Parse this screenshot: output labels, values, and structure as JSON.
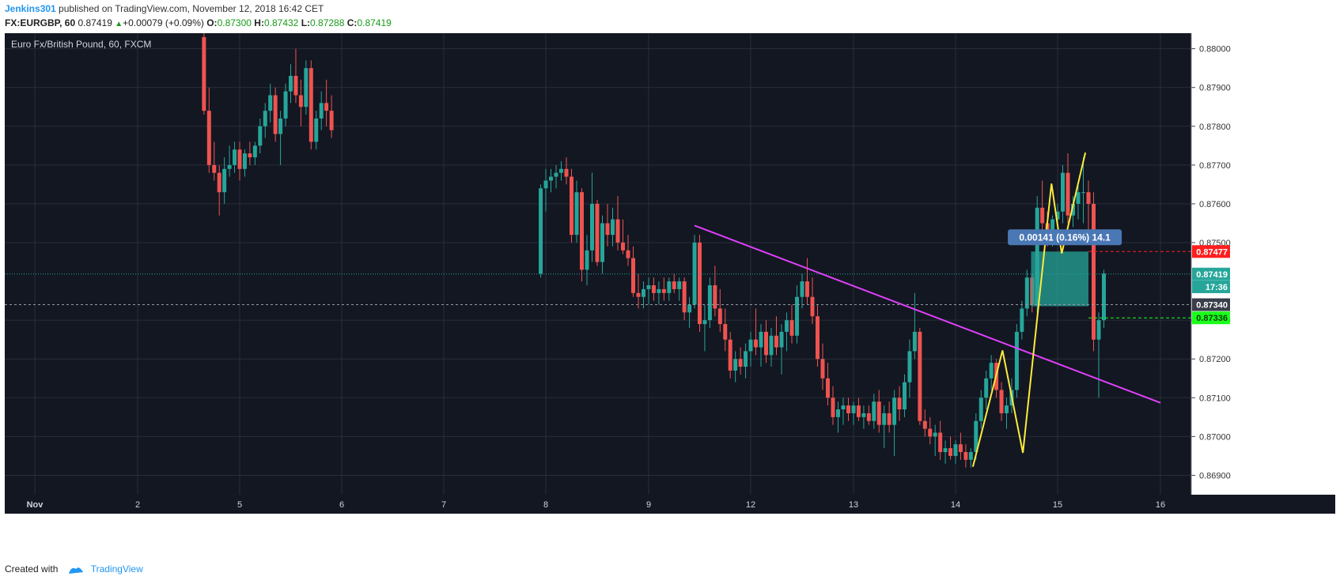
{
  "header": {
    "author": "Jenkins301",
    "published_text": " published on TradingView.com, November 12, 2018 16:42 CET",
    "symbol_tf": "FX:EURGBP, 60",
    "last": "0.87419",
    "change_arrow": "▲",
    "change": "+0.00079 (+0.09%)",
    "o_label": "O:",
    "o": "0.87300",
    "h_label": "H:",
    "h": "0.87432",
    "l_label": "L:",
    "l": "0.87288",
    "c_label": "C:",
    "c": "0.87419"
  },
  "footer": {
    "created_with": "Created with",
    "brand": "TradingView"
  },
  "chart_data": {
    "type": "candlestick",
    "title": "Euro Fx/British Pound, 60, FXCM",
    "xlabel": "",
    "ylabel": "",
    "x_ticks": [
      "Nov",
      "2",
      "5",
      "6",
      "7",
      "8",
      "9",
      "12",
      "13",
      "14",
      "15",
      "16"
    ],
    "y_ticks": [
      "0.88000",
      "0.87900",
      "0.87800",
      "0.87700",
      "0.87600",
      "0.87500",
      "0.87300",
      "0.87200",
      "0.87100",
      "0.87000",
      "0.86900"
    ],
    "ylim": [
      0.8685,
      0.8804
    ],
    "grid": true,
    "colors": {
      "background": "#131722",
      "grid": "#2a2e39",
      "up": "#26a69a",
      "down": "#ef5350",
      "trendline": "#e040fb",
      "pattern": "#ffeb3b",
      "box": "#26a69a"
    },
    "candles": [
      {
        "t": 1.65,
        "o": 0.8803,
        "h": 0.8806,
        "l": 0.8783,
        "c": 0.8784
      },
      {
        "t": 1.7,
        "o": 0.8784,
        "h": 0.879,
        "l": 0.8768,
        "c": 0.877
      },
      {
        "t": 1.75,
        "o": 0.877,
        "h": 0.8776,
        "l": 0.8766,
        "c": 0.8768
      },
      {
        "t": 1.8,
        "o": 0.8768,
        "h": 0.877,
        "l": 0.8757,
        "c": 0.8763
      },
      {
        "t": 1.85,
        "o": 0.8763,
        "h": 0.8772,
        "l": 0.876,
        "c": 0.8769
      },
      {
        "t": 1.9,
        "o": 0.8769,
        "h": 0.8775,
        "l": 0.8767,
        "c": 0.877
      },
      {
        "t": 1.95,
        "o": 0.877,
        "h": 0.8776,
        "l": 0.8768,
        "c": 0.8774
      },
      {
        "t": 2.0,
        "o": 0.8774,
        "h": 0.8776,
        "l": 0.8766,
        "c": 0.8769
      },
      {
        "t": 2.05,
        "o": 0.8769,
        "h": 0.8774,
        "l": 0.8767,
        "c": 0.8773
      },
      {
        "t": 2.1,
        "o": 0.8773,
        "h": 0.8776,
        "l": 0.877,
        "c": 0.8772
      },
      {
        "t": 2.15,
        "o": 0.8772,
        "h": 0.8776,
        "l": 0.877,
        "c": 0.8775
      },
      {
        "t": 2.2,
        "o": 0.8775,
        "h": 0.8782,
        "l": 0.8773,
        "c": 0.878
      },
      {
        "t": 2.25,
        "o": 0.878,
        "h": 0.8786,
        "l": 0.8777,
        "c": 0.8784
      },
      {
        "t": 2.3,
        "o": 0.8784,
        "h": 0.8791,
        "l": 0.8781,
        "c": 0.8788
      },
      {
        "t": 2.35,
        "o": 0.8788,
        "h": 0.879,
        "l": 0.8776,
        "c": 0.8778
      },
      {
        "t": 2.4,
        "o": 0.8778,
        "h": 0.8784,
        "l": 0.877,
        "c": 0.8782
      },
      {
        "t": 2.45,
        "o": 0.8782,
        "h": 0.8791,
        "l": 0.878,
        "c": 0.8789
      },
      {
        "t": 2.5,
        "o": 0.8789,
        "h": 0.8796,
        "l": 0.8786,
        "c": 0.8793
      },
      {
        "t": 2.55,
        "o": 0.8793,
        "h": 0.88,
        "l": 0.8786,
        "c": 0.8788
      },
      {
        "t": 2.6,
        "o": 0.8788,
        "h": 0.8792,
        "l": 0.878,
        "c": 0.8785
      },
      {
        "t": 2.65,
        "o": 0.8785,
        "h": 0.8797,
        "l": 0.8783,
        "c": 0.8795
      },
      {
        "t": 2.7,
        "o": 0.8795,
        "h": 0.8797,
        "l": 0.8774,
        "c": 0.8776
      },
      {
        "t": 2.75,
        "o": 0.8776,
        "h": 0.8784,
        "l": 0.8774,
        "c": 0.8782
      },
      {
        "t": 2.8,
        "o": 0.8782,
        "h": 0.8789,
        "l": 0.8779,
        "c": 0.8786
      },
      {
        "t": 2.85,
        "o": 0.8786,
        "h": 0.8792,
        "l": 0.878,
        "c": 0.8784
      },
      {
        "t": 2.9,
        "o": 0.8784,
        "h": 0.8788,
        "l": 0.8777,
        "c": 0.8779
      },
      {
        "t": 4.95,
        "o": 0.8742,
        "h": 0.8765,
        "l": 0.8741,
        "c": 0.8764
      },
      {
        "t": 5.0,
        "o": 0.8764,
        "h": 0.8769,
        "l": 0.8758,
        "c": 0.8766
      },
      {
        "t": 5.05,
        "o": 0.8766,
        "h": 0.8769,
        "l": 0.8763,
        "c": 0.8767
      },
      {
        "t": 5.1,
        "o": 0.8767,
        "h": 0.877,
        "l": 0.8764,
        "c": 0.8768
      },
      {
        "t": 5.15,
        "o": 0.8768,
        "h": 0.8771,
        "l": 0.8766,
        "c": 0.8769
      },
      {
        "t": 5.2,
        "o": 0.8769,
        "h": 0.8772,
        "l": 0.8765,
        "c": 0.8767
      },
      {
        "t": 5.25,
        "o": 0.8767,
        "h": 0.8769,
        "l": 0.875,
        "c": 0.8752
      },
      {
        "t": 5.3,
        "o": 0.8752,
        "h": 0.8766,
        "l": 0.875,
        "c": 0.8763
      },
      {
        "t": 5.35,
        "o": 0.8763,
        "h": 0.8764,
        "l": 0.874,
        "c": 0.8743
      },
      {
        "t": 5.4,
        "o": 0.8743,
        "h": 0.8752,
        "l": 0.8739,
        "c": 0.8748
      },
      {
        "t": 5.45,
        "o": 0.8748,
        "h": 0.8768,
        "l": 0.8745,
        "c": 0.876
      },
      {
        "t": 5.5,
        "o": 0.876,
        "h": 0.8761,
        "l": 0.8744,
        "c": 0.8745
      },
      {
        "t": 5.55,
        "o": 0.8745,
        "h": 0.8757,
        "l": 0.8742,
        "c": 0.8755
      },
      {
        "t": 5.6,
        "o": 0.8755,
        "h": 0.876,
        "l": 0.8749,
        "c": 0.8752
      },
      {
        "t": 5.65,
        "o": 0.8752,
        "h": 0.8759,
        "l": 0.8749,
        "c": 0.8756
      },
      {
        "t": 5.7,
        "o": 0.8756,
        "h": 0.8762,
        "l": 0.8748,
        "c": 0.875
      },
      {
        "t": 5.75,
        "o": 0.875,
        "h": 0.8756,
        "l": 0.8747,
        "c": 0.8748
      },
      {
        "t": 5.8,
        "o": 0.8748,
        "h": 0.8752,
        "l": 0.8744,
        "c": 0.8746
      },
      {
        "t": 5.85,
        "o": 0.8746,
        "h": 0.8749,
        "l": 0.8736,
        "c": 0.8737
      },
      {
        "t": 5.9,
        "o": 0.8737,
        "h": 0.8742,
        "l": 0.8733,
        "c": 0.8736
      },
      {
        "t": 5.95,
        "o": 0.8736,
        "h": 0.874,
        "l": 0.8733,
        "c": 0.8738
      },
      {
        "t": 6.0,
        "o": 0.8738,
        "h": 0.8741,
        "l": 0.8734,
        "c": 0.8739
      },
      {
        "t": 6.05,
        "o": 0.8739,
        "h": 0.8741,
        "l": 0.8735,
        "c": 0.8737
      },
      {
        "t": 6.1,
        "o": 0.8737,
        "h": 0.874,
        "l": 0.8734,
        "c": 0.8738
      },
      {
        "t": 6.15,
        "o": 0.8738,
        "h": 0.8741,
        "l": 0.8735,
        "c": 0.8737
      },
      {
        "t": 6.2,
        "o": 0.8737,
        "h": 0.8741,
        "l": 0.8735,
        "c": 0.874
      },
      {
        "t": 6.25,
        "o": 0.874,
        "h": 0.8742,
        "l": 0.8737,
        "c": 0.8738
      },
      {
        "t": 6.3,
        "o": 0.8738,
        "h": 0.8741,
        "l": 0.8735,
        "c": 0.874
      },
      {
        "t": 6.35,
        "o": 0.874,
        "h": 0.8741,
        "l": 0.873,
        "c": 0.8732
      },
      {
        "t": 6.4,
        "o": 0.8732,
        "h": 0.8736,
        "l": 0.8728,
        "c": 0.8734
      },
      {
        "t": 6.45,
        "o": 0.8734,
        "h": 0.8752,
        "l": 0.8733,
        "c": 0.875
      },
      {
        "t": 6.5,
        "o": 0.875,
        "h": 0.8752,
        "l": 0.8727,
        "c": 0.8729
      },
      {
        "t": 6.55,
        "o": 0.8729,
        "h": 0.8734,
        "l": 0.8722,
        "c": 0.873
      },
      {
        "t": 6.6,
        "o": 0.873,
        "h": 0.8741,
        "l": 0.8728,
        "c": 0.8739
      },
      {
        "t": 6.65,
        "o": 0.8739,
        "h": 0.8744,
        "l": 0.8731,
        "c": 0.8733
      },
      {
        "t": 6.7,
        "o": 0.8733,
        "h": 0.8738,
        "l": 0.8727,
        "c": 0.8729
      },
      {
        "t": 6.75,
        "o": 0.8729,
        "h": 0.8733,
        "l": 0.8722,
        "c": 0.8725
      },
      {
        "t": 6.8,
        "o": 0.8725,
        "h": 0.8727,
        "l": 0.8715,
        "c": 0.8717
      },
      {
        "t": 6.85,
        "o": 0.8717,
        "h": 0.8722,
        "l": 0.8714,
        "c": 0.872
      },
      {
        "t": 6.9,
        "o": 0.872,
        "h": 0.8723,
        "l": 0.8716,
        "c": 0.8718
      },
      {
        "t": 6.95,
        "o": 0.8718,
        "h": 0.8724,
        "l": 0.8715,
        "c": 0.8722
      },
      {
        "t": 7.0,
        "o": 0.8722,
        "h": 0.8727,
        "l": 0.8718,
        "c": 0.8725
      },
      {
        "t": 7.05,
        "o": 0.8725,
        "h": 0.8733,
        "l": 0.8721,
        "c": 0.8723
      },
      {
        "t": 7.1,
        "o": 0.8723,
        "h": 0.8729,
        "l": 0.8718,
        "c": 0.8727
      },
      {
        "t": 7.15,
        "o": 0.8727,
        "h": 0.873,
        "l": 0.8719,
        "c": 0.8721
      },
      {
        "t": 7.2,
        "o": 0.8721,
        "h": 0.8728,
        "l": 0.8718,
        "c": 0.8726
      },
      {
        "t": 7.25,
        "o": 0.8726,
        "h": 0.8731,
        "l": 0.8721,
        "c": 0.8723
      },
      {
        "t": 7.3,
        "o": 0.8723,
        "h": 0.8729,
        "l": 0.8716,
        "c": 0.8727
      },
      {
        "t": 7.35,
        "o": 0.8727,
        "h": 0.8732,
        "l": 0.8722,
        "c": 0.873
      },
      {
        "t": 7.4,
        "o": 0.873,
        "h": 0.8734,
        "l": 0.8724,
        "c": 0.8726
      },
      {
        "t": 7.45,
        "o": 0.8726,
        "h": 0.8739,
        "l": 0.8724,
        "c": 0.8736
      },
      {
        "t": 7.5,
        "o": 0.8736,
        "h": 0.8742,
        "l": 0.8733,
        "c": 0.874
      },
      {
        "t": 7.55,
        "o": 0.874,
        "h": 0.8746,
        "l": 0.8734,
        "c": 0.8736
      },
      {
        "t": 7.6,
        "o": 0.8736,
        "h": 0.8741,
        "l": 0.8729,
        "c": 0.8731
      },
      {
        "t": 7.65,
        "o": 0.8731,
        "h": 0.8734,
        "l": 0.8718,
        "c": 0.872
      },
      {
        "t": 7.7,
        "o": 0.872,
        "h": 0.8724,
        "l": 0.8712,
        "c": 0.8715
      },
      {
        "t": 7.75,
        "o": 0.8715,
        "h": 0.8719,
        "l": 0.8708,
        "c": 0.871
      },
      {
        "t": 7.8,
        "o": 0.871,
        "h": 0.8713,
        "l": 0.8703,
        "c": 0.8705
      },
      {
        "t": 7.85,
        "o": 0.8705,
        "h": 0.8709,
        "l": 0.8701,
        "c": 0.8707
      },
      {
        "t": 7.9,
        "o": 0.8707,
        "h": 0.871,
        "l": 0.8703,
        "c": 0.8708
      },
      {
        "t": 7.95,
        "o": 0.8708,
        "h": 0.871,
        "l": 0.8704,
        "c": 0.8706
      },
      {
        "t": 8.0,
        "o": 0.8706,
        "h": 0.8709,
        "l": 0.8703,
        "c": 0.8708
      },
      {
        "t": 8.05,
        "o": 0.8708,
        "h": 0.871,
        "l": 0.8704,
        "c": 0.8705
      },
      {
        "t": 8.1,
        "o": 0.8705,
        "h": 0.8708,
        "l": 0.8702,
        "c": 0.8706
      },
      {
        "t": 8.15,
        "o": 0.8706,
        "h": 0.8708,
        "l": 0.8703,
        "c": 0.8704
      },
      {
        "t": 8.2,
        "o": 0.8704,
        "h": 0.8711,
        "l": 0.8702,
        "c": 0.8709
      },
      {
        "t": 8.25,
        "o": 0.8709,
        "h": 0.8712,
        "l": 0.8701,
        "c": 0.8703
      },
      {
        "t": 8.3,
        "o": 0.8703,
        "h": 0.8708,
        "l": 0.8697,
        "c": 0.8706
      },
      {
        "t": 8.35,
        "o": 0.8706,
        "h": 0.8709,
        "l": 0.8701,
        "c": 0.8703
      },
      {
        "t": 8.4,
        "o": 0.8703,
        "h": 0.8712,
        "l": 0.8695,
        "c": 0.871
      },
      {
        "t": 8.45,
        "o": 0.871,
        "h": 0.8713,
        "l": 0.8704,
        "c": 0.8707
      },
      {
        "t": 8.5,
        "o": 0.8707,
        "h": 0.8716,
        "l": 0.8705,
        "c": 0.8714
      },
      {
        "t": 8.55,
        "o": 0.8714,
        "h": 0.8725,
        "l": 0.871,
        "c": 0.8722
      },
      {
        "t": 8.6,
        "o": 0.8722,
        "h": 0.8737,
        "l": 0.872,
        "c": 0.8727
      },
      {
        "t": 8.65,
        "o": 0.8727,
        "h": 0.8728,
        "l": 0.8703,
        "c": 0.8704
      },
      {
        "t": 8.7,
        "o": 0.8704,
        "h": 0.8707,
        "l": 0.87,
        "c": 0.8702
      },
      {
        "t": 8.75,
        "o": 0.8702,
        "h": 0.8705,
        "l": 0.8698,
        "c": 0.87
      },
      {
        "t": 8.8,
        "o": 0.87,
        "h": 0.8703,
        "l": 0.8695,
        "c": 0.8701
      },
      {
        "t": 8.85,
        "o": 0.8701,
        "h": 0.8704,
        "l": 0.8694,
        "c": 0.8696
      },
      {
        "t": 8.9,
        "o": 0.8696,
        "h": 0.8699,
        "l": 0.8693,
        "c": 0.8697
      },
      {
        "t": 8.95,
        "o": 0.8697,
        "h": 0.87,
        "l": 0.8694,
        "c": 0.8695
      },
      {
        "t": 9.0,
        "o": 0.8695,
        "h": 0.8699,
        "l": 0.8693,
        "c": 0.8698
      },
      {
        "t": 9.05,
        "o": 0.8698,
        "h": 0.8701,
        "l": 0.8694,
        "c": 0.8696
      },
      {
        "t": 9.1,
        "o": 0.8696,
        "h": 0.8698,
        "l": 0.8692,
        "c": 0.8694
      },
      {
        "t": 9.15,
        "o": 0.8694,
        "h": 0.8697,
        "l": 0.8692,
        "c": 0.8696
      },
      {
        "t": 9.2,
        "o": 0.8696,
        "h": 0.8706,
        "l": 0.8694,
        "c": 0.8704
      },
      {
        "t": 9.25,
        "o": 0.8704,
        "h": 0.8712,
        "l": 0.8702,
        "c": 0.871
      },
      {
        "t": 9.3,
        "o": 0.871,
        "h": 0.8717,
        "l": 0.8707,
        "c": 0.8715
      },
      {
        "t": 9.35,
        "o": 0.8715,
        "h": 0.8721,
        "l": 0.8712,
        "c": 0.8719
      },
      {
        "t": 9.4,
        "o": 0.8719,
        "h": 0.872,
        "l": 0.871,
        "c": 0.8712
      },
      {
        "t": 9.45,
        "o": 0.8712,
        "h": 0.8714,
        "l": 0.8704,
        "c": 0.8706
      },
      {
        "t": 9.5,
        "o": 0.8706,
        "h": 0.871,
        "l": 0.8702,
        "c": 0.8708
      },
      {
        "t": 9.55,
        "o": 0.8708,
        "h": 0.8715,
        "l": 0.8706,
        "c": 0.8712
      },
      {
        "t": 9.6,
        "o": 0.8712,
        "h": 0.8729,
        "l": 0.871,
        "c": 0.8727
      },
      {
        "t": 9.65,
        "o": 0.8727,
        "h": 0.8735,
        "l": 0.8725,
        "c": 0.8733
      },
      {
        "t": 9.7,
        "o": 0.8733,
        "h": 0.8743,
        "l": 0.8731,
        "c": 0.8741
      },
      {
        "t": 9.75,
        "o": 0.8741,
        "h": 0.8742,
        "l": 0.8732,
        "c": 0.8734
      },
      {
        "t": 9.8,
        "o": 0.8734,
        "h": 0.8762,
        "l": 0.8732,
        "c": 0.8759
      },
      {
        "t": 9.85,
        "o": 0.8759,
        "h": 0.8766,
        "l": 0.8752,
        "c": 0.8755
      },
      {
        "t": 9.9,
        "o": 0.8755,
        "h": 0.8758,
        "l": 0.8749,
        "c": 0.8753
      },
      {
        "t": 9.95,
        "o": 0.8753,
        "h": 0.8757,
        "l": 0.8749,
        "c": 0.8756
      },
      {
        "t": 10.0,
        "o": 0.8756,
        "h": 0.876,
        "l": 0.8752,
        "c": 0.8758
      },
      {
        "t": 10.05,
        "o": 0.8758,
        "h": 0.877,
        "l": 0.8755,
        "c": 0.8768
      },
      {
        "t": 10.1,
        "o": 0.8768,
        "h": 0.8773,
        "l": 0.8755,
        "c": 0.8757
      },
      {
        "t": 10.15,
        "o": 0.8757,
        "h": 0.8762,
        "l": 0.8754,
        "c": 0.876
      },
      {
        "t": 10.2,
        "o": 0.876,
        "h": 0.8765,
        "l": 0.8756,
        "c": 0.8763
      },
      {
        "t": 10.25,
        "o": 0.8763,
        "h": 0.8772,
        "l": 0.8755,
        "c": 0.8763
      },
      {
        "t": 10.3,
        "o": 0.8763,
        "h": 0.8766,
        "l": 0.8751,
        "c": 0.876
      },
      {
        "t": 10.35,
        "o": 0.876,
        "h": 0.8763,
        "l": 0.8722,
        "c": 0.8725
      },
      {
        "t": 10.4,
        "o": 0.8725,
        "h": 0.8732,
        "l": 0.871,
        "c": 0.873
      },
      {
        "t": 10.45,
        "o": 0.873,
        "h": 0.8743,
        "l": 0.8728,
        "c": 0.8742
      }
    ],
    "trendline": {
      "t1": 6.45,
      "p1": 0.87544,
      "t2": 14.65,
      "p2": 0.87087
    },
    "pattern_line": [
      {
        "t": 9.17,
        "p": 0.86922
      },
      {
        "t": 9.46,
        "p": 0.87222
      },
      {
        "t": 9.66,
        "p": 0.86958
      },
      {
        "t": 9.94,
        "p": 0.87652
      },
      {
        "t": 10.04,
        "p": 0.87472
      },
      {
        "t": 10.27,
        "p": 0.87732
      }
    ],
    "price_range": {
      "t1": 9.74,
      "t2": 10.3,
      "p_top": 0.87477,
      "p_bottom": 0.87336,
      "label": "0.00141 (0.16%) 14.1"
    },
    "price_labels": [
      {
        "text": "0.87477",
        "price": 0.87477,
        "color": "#ff1e1e"
      },
      {
        "text": "0.87419",
        "price": 0.87419,
        "color": "#26a69a"
      },
      {
        "text": "17:36",
        "price": 0.87386,
        "color": "#26a69a"
      },
      {
        "text": "0.87340",
        "price": 0.8734,
        "color": "#3a3e4a"
      },
      {
        "text": "0.87336",
        "price": 0.87306,
        "color": "#1aff1a"
      }
    ]
  }
}
